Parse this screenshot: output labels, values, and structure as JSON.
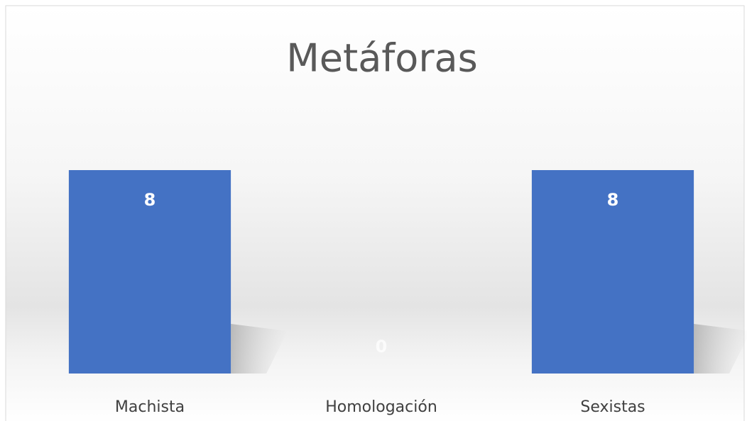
{
  "chart_data": {
    "type": "bar",
    "title": "Metáforas",
    "categories": [
      "Machista",
      "Homologación",
      "Sexistas"
    ],
    "values": [
      8,
      0,
      8
    ],
    "color": "#4472c4"
  }
}
